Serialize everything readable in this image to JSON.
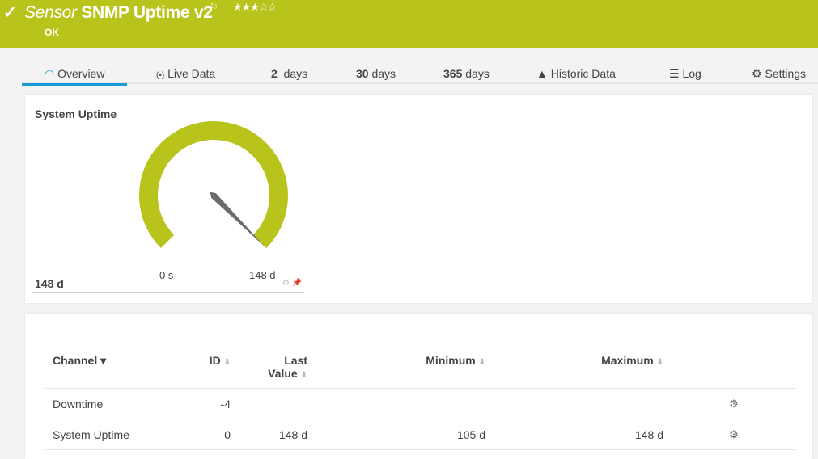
{
  "header": {
    "prefix": "Sensor",
    "title": "SNMP Uptime v2",
    "status": "OK",
    "priority_stars": 3,
    "priority_max": 5,
    "accent": "#b8c41b"
  },
  "tabs": [
    {
      "label": "Overview",
      "icon": "gauge-icon",
      "active": true
    },
    {
      "label": "Live Data",
      "icon": "broadcast-icon"
    },
    {
      "num": "2",
      "label": "days"
    },
    {
      "num": "30",
      "label": "days"
    },
    {
      "num": "365",
      "label": "days"
    },
    {
      "label": "Historic Data",
      "icon": "area-chart-icon"
    },
    {
      "label": "Log",
      "icon": "list-icon"
    },
    {
      "label": "Settings",
      "icon": "gear-icon"
    }
  ],
  "gauge": {
    "title": "System Uptime",
    "value": "148 d",
    "min_label": "0 s",
    "max_label": "148 d",
    "fill_fraction": 1.0
  },
  "table": {
    "headers": {
      "channel": "Channel",
      "id": "ID",
      "last1": "Last",
      "last2": "Value",
      "min": "Minimum",
      "max": "Maximum"
    },
    "rows": [
      {
        "channel": "Downtime",
        "id": "-4",
        "last": "",
        "min": "",
        "max": ""
      },
      {
        "channel": "System Uptime",
        "id": "0",
        "last": "148 d",
        "min": "105 d",
        "max": "148 d"
      }
    ]
  }
}
